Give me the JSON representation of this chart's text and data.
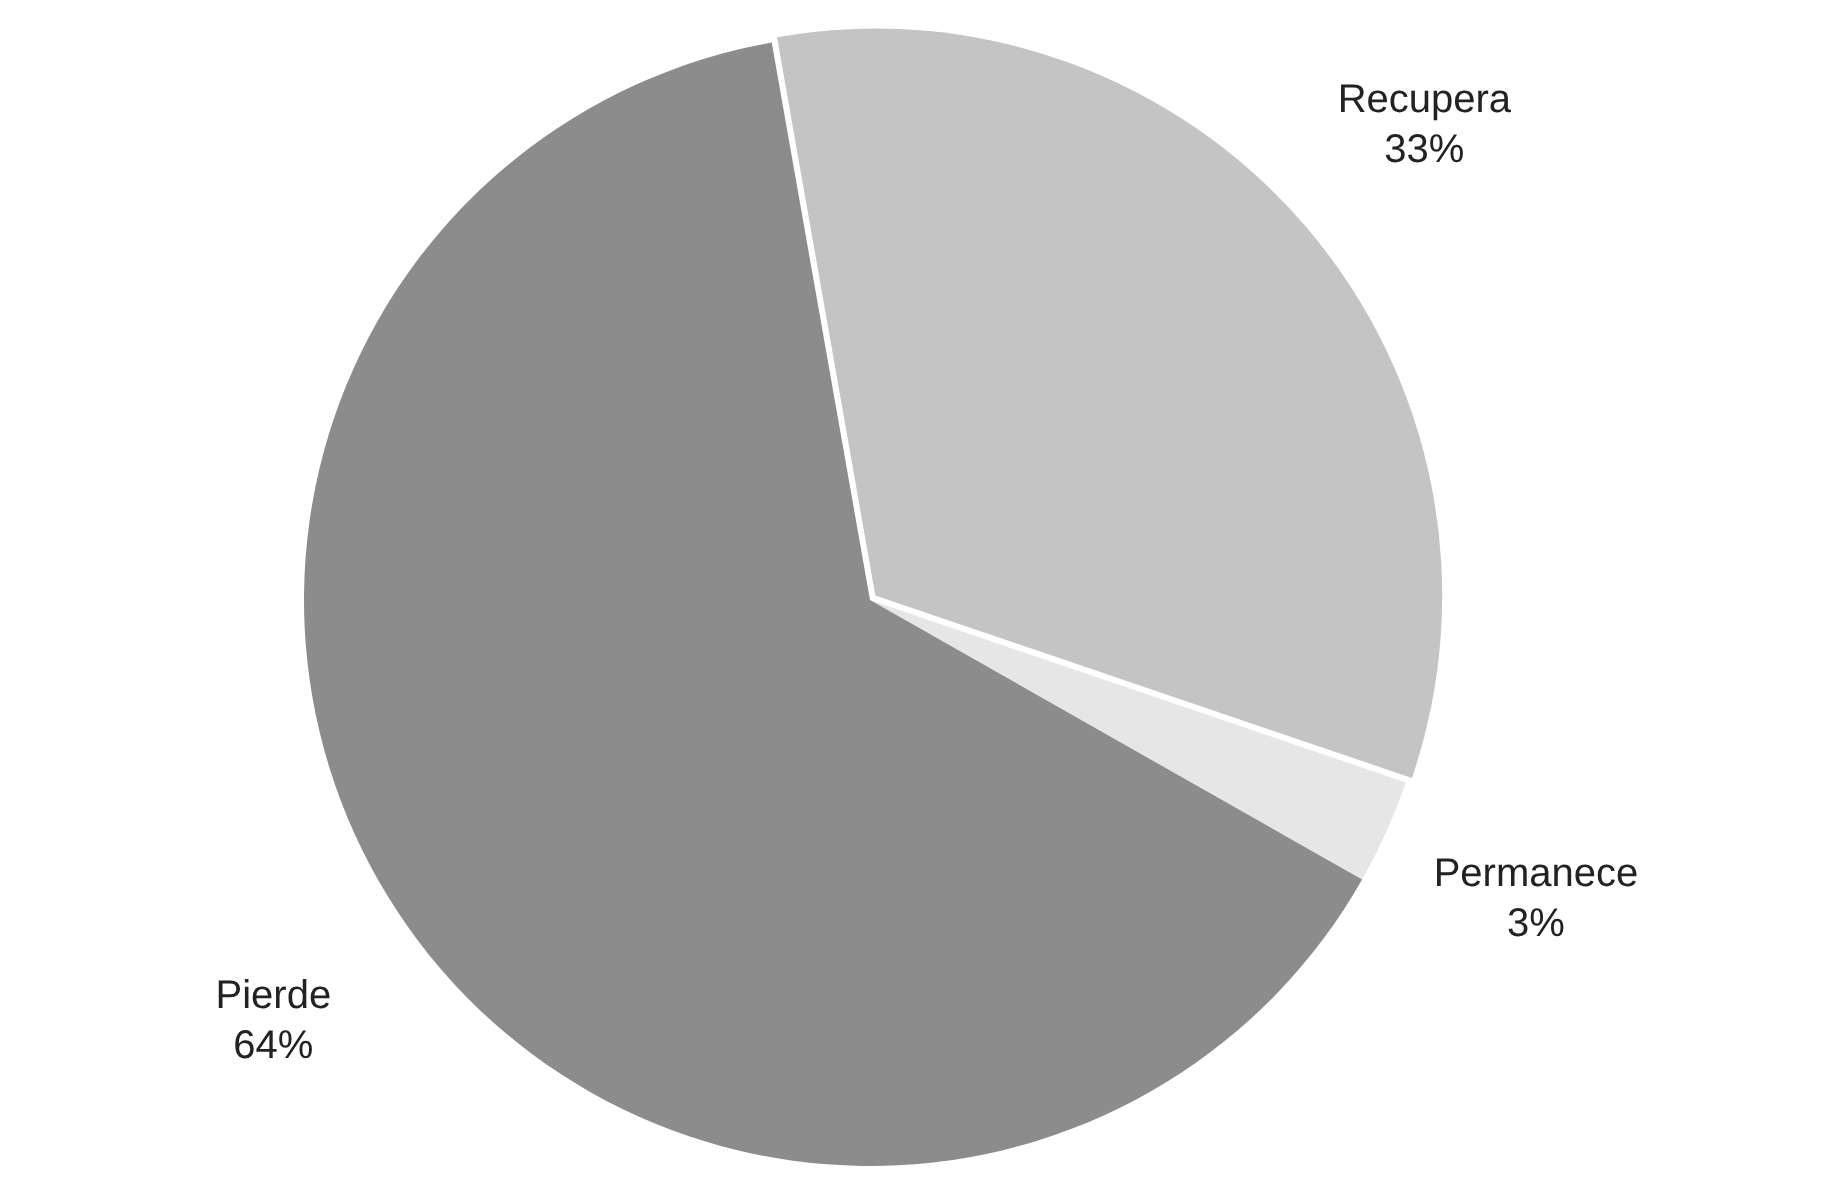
{
  "chart_data": {
    "type": "pie",
    "categories": [
      "Recupera",
      "Permanece",
      "Pierde"
    ],
    "values": [
      33,
      3,
      64
    ],
    "colors": [
      "#c4c4c4",
      "#e6e6e6",
      "#8c8c8c"
    ],
    "value_labels": [
      "33%",
      "3%",
      "64%"
    ],
    "legend": false
  }
}
